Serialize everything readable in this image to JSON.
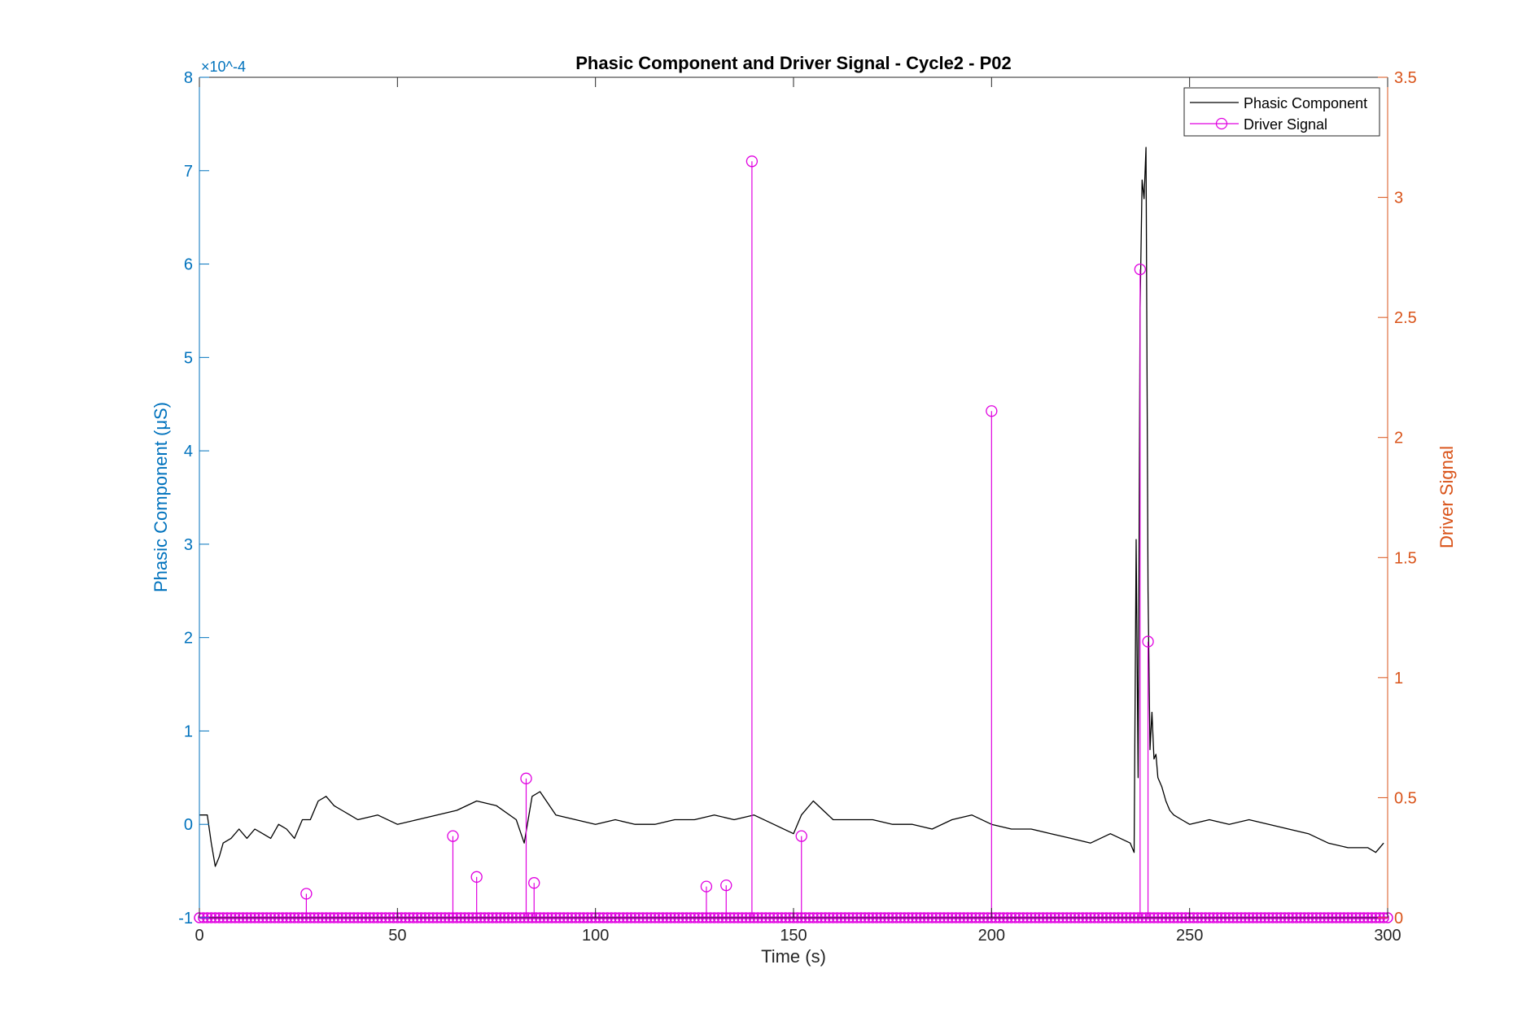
{
  "chart_data": {
    "type": "line",
    "title": "Phasic Component and Driver Signal - Cycle2 - P02",
    "xlabel": "Time (s)",
    "ylabel_left": "Phasic Component (μS)",
    "ylabel_right": "Driver Signal",
    "xlim": [
      0,
      300
    ],
    "ylim_left": [
      -1,
      8
    ],
    "ylim_right": [
      0,
      3.5
    ],
    "y_left_exponent": "×10^-4",
    "x_ticks": [
      "0",
      "50",
      "100",
      "150",
      "200",
      "250",
      "300"
    ],
    "y_left_ticks": [
      "-1",
      "0",
      "1",
      "2",
      "3",
      "4",
      "5",
      "6",
      "7",
      "8"
    ],
    "y_right_ticks": [
      "0",
      "0.5",
      "1",
      "1.5",
      "2",
      "2.5",
      "3",
      "3.5"
    ],
    "legend": {
      "position": "top-right",
      "entries": [
        "Phasic Component",
        "Driver Signal"
      ]
    },
    "colors": {
      "left_axis": "#0072BD",
      "right_axis": "#D95319",
      "phasic": "#000000",
      "driver": "#E000E0",
      "axes": "#262626"
    },
    "series": [
      {
        "name": "Phasic Component",
        "axis": "left",
        "x": [
          0,
          2,
          3,
          4,
          5,
          6,
          8,
          10,
          12,
          14,
          16,
          18,
          20,
          22,
          24,
          26,
          28,
          30,
          32,
          34,
          36,
          38,
          40,
          45,
          50,
          55,
          60,
          65,
          70,
          75,
          80,
          82,
          84,
          86,
          90,
          95,
          100,
          105,
          110,
          115,
          120,
          125,
          130,
          135,
          140,
          145,
          150,
          152,
          155,
          160,
          165,
          170,
          175,
          180,
          185,
          190,
          195,
          200,
          205,
          210,
          215,
          220,
          225,
          230,
          235,
          236,
          236.5,
          237,
          237.5,
          238,
          238.5,
          239,
          239.5,
          240,
          240.5,
          241,
          241.5,
          242,
          243,
          244,
          245,
          246,
          248,
          250,
          255,
          260,
          265,
          270,
          275,
          280,
          285,
          290,
          295,
          297,
          299
        ],
        "y": [
          0.1,
          0.1,
          -0.2,
          -0.45,
          -0.35,
          -0.2,
          -0.15,
          -0.05,
          -0.15,
          -0.05,
          -0.1,
          -0.15,
          0.0,
          -0.05,
          -0.15,
          0.05,
          0.05,
          0.25,
          0.3,
          0.2,
          0.15,
          0.1,
          0.05,
          0.1,
          0.0,
          0.05,
          0.1,
          0.15,
          0.25,
          0.2,
          0.05,
          -0.2,
          0.3,
          0.35,
          0.1,
          0.05,
          0.0,
          0.05,
          0.0,
          0.0,
          0.05,
          0.05,
          0.1,
          0.05,
          0.1,
          0.0,
          -0.1,
          0.1,
          0.25,
          0.05,
          0.05,
          0.05,
          0.0,
          0.0,
          -0.05,
          0.05,
          0.1,
          0.0,
          -0.05,
          -0.05,
          -0.1,
          -0.15,
          -0.2,
          -0.1,
          -0.2,
          -0.3,
          3.05,
          0.5,
          5.5,
          6.9,
          6.7,
          7.25,
          2.5,
          0.8,
          1.2,
          0.7,
          0.75,
          0.5,
          0.4,
          0.25,
          0.15,
          0.1,
          0.05,
          0.0,
          0.05,
          0.0,
          0.05,
          0.0,
          -0.05,
          -0.1,
          -0.2,
          -0.25,
          -0.25,
          -0.3,
          -0.2
        ]
      },
      {
        "name": "Driver Signal",
        "axis": "right",
        "type": "stem",
        "x": [
          27,
          64,
          70,
          82.5,
          84.5,
          128,
          133,
          139.5,
          152,
          200,
          237.5,
          239.5
        ],
        "y": [
          0.1,
          0.34,
          0.17,
          0.58,
          0.145,
          0.13,
          0.135,
          3.15,
          0.34,
          2.11,
          2.7,
          1.15
        ],
        "baseline_markers_x_step": 1
      }
    ]
  }
}
